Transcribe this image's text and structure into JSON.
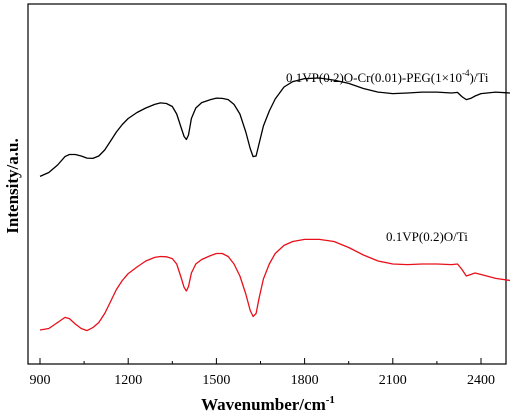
{
  "chart_data": {
    "type": "line",
    "xlabel": "Wavenumber/cm",
    "xlabel_superscript": "-1",
    "ylabel": "Intensity/a.u.",
    "xlim": [
      900,
      2500
    ],
    "x_ticks": [
      900,
      1200,
      1500,
      1800,
      2100,
      2400
    ],
    "x_tick_labels": [
      "900",
      "1200",
      "1500",
      "1800",
      "2100",
      "2400"
    ],
    "ylim": [
      0,
      10
    ],
    "y_ticks_labeled": false,
    "grid": false,
    "legend": "none",
    "series": [
      {
        "name": "0.1VP(0.2)O-Cr(0.01)-PEG(1×10",
        "name_superscript": "-4",
        "name_suffix": ")/Ti",
        "color": "#000000",
        "points": [
          [
            900,
            6.12
          ],
          [
            930,
            6.25
          ],
          [
            960,
            6.5
          ],
          [
            985,
            6.78
          ],
          [
            1000,
            6.85
          ],
          [
            1020,
            6.85
          ],
          [
            1040,
            6.8
          ],
          [
            1060,
            6.73
          ],
          [
            1080,
            6.72
          ],
          [
            1100,
            6.8
          ],
          [
            1120,
            7.0
          ],
          [
            1140,
            7.3
          ],
          [
            1160,
            7.6
          ],
          [
            1180,
            7.85
          ],
          [
            1200,
            8.05
          ],
          [
            1230,
            8.25
          ],
          [
            1260,
            8.4
          ],
          [
            1290,
            8.52
          ],
          [
            1310,
            8.57
          ],
          [
            1330,
            8.55
          ],
          [
            1350,
            8.45
          ],
          [
            1365,
            8.2
          ],
          [
            1380,
            7.75
          ],
          [
            1390,
            7.45
          ],
          [
            1398,
            7.35
          ],
          [
            1405,
            7.5
          ],
          [
            1415,
            8.05
          ],
          [
            1430,
            8.4
          ],
          [
            1450,
            8.58
          ],
          [
            1480,
            8.68
          ],
          [
            1500,
            8.73
          ],
          [
            1520,
            8.72
          ],
          [
            1540,
            8.68
          ],
          [
            1560,
            8.52
          ],
          [
            1580,
            8.2
          ],
          [
            1600,
            7.6
          ],
          [
            1615,
            7.05
          ],
          [
            1625,
            6.78
          ],
          [
            1635,
            6.8
          ],
          [
            1645,
            7.2
          ],
          [
            1660,
            7.8
          ],
          [
            1680,
            8.3
          ],
          [
            1700,
            8.7
          ],
          [
            1730,
            9.1
          ],
          [
            1760,
            9.28
          ],
          [
            1800,
            9.38
          ],
          [
            1850,
            9.4
          ],
          [
            1900,
            9.33
          ],
          [
            1950,
            9.22
          ],
          [
            2000,
            9.05
          ],
          [
            2050,
            8.93
          ],
          [
            2100,
            8.88
          ],
          [
            2150,
            8.9
          ],
          [
            2200,
            8.93
          ],
          [
            2250,
            8.93
          ],
          [
            2300,
            8.9
          ],
          [
            2320,
            8.92
          ],
          [
            2335,
            8.78
          ],
          [
            2350,
            8.68
          ],
          [
            2365,
            8.72
          ],
          [
            2380,
            8.8
          ],
          [
            2400,
            8.88
          ],
          [
            2450,
            8.93
          ],
          [
            2500,
            8.9
          ]
        ]
      },
      {
        "name": "0.1VP(0.2)O/Ti",
        "color": "#e8101a",
        "points": [
          [
            900,
            1.0
          ],
          [
            930,
            1.05
          ],
          [
            960,
            1.25
          ],
          [
            985,
            1.42
          ],
          [
            1000,
            1.38
          ],
          [
            1020,
            1.2
          ],
          [
            1040,
            1.05
          ],
          [
            1060,
            0.98
          ],
          [
            1080,
            1.08
          ],
          [
            1100,
            1.25
          ],
          [
            1120,
            1.55
          ],
          [
            1140,
            1.95
          ],
          [
            1160,
            2.35
          ],
          [
            1180,
            2.65
          ],
          [
            1200,
            2.88
          ],
          [
            1230,
            3.1
          ],
          [
            1260,
            3.3
          ],
          [
            1290,
            3.42
          ],
          [
            1310,
            3.45
          ],
          [
            1330,
            3.44
          ],
          [
            1350,
            3.38
          ],
          [
            1365,
            3.2
          ],
          [
            1380,
            2.75
          ],
          [
            1390,
            2.42
          ],
          [
            1398,
            2.3
          ],
          [
            1405,
            2.45
          ],
          [
            1415,
            2.9
          ],
          [
            1430,
            3.2
          ],
          [
            1450,
            3.35
          ],
          [
            1480,
            3.48
          ],
          [
            1500,
            3.55
          ],
          [
            1520,
            3.55
          ],
          [
            1540,
            3.45
          ],
          [
            1560,
            3.2
          ],
          [
            1580,
            2.8
          ],
          [
            1600,
            2.2
          ],
          [
            1615,
            1.65
          ],
          [
            1625,
            1.45
          ],
          [
            1635,
            1.55
          ],
          [
            1645,
            2.05
          ],
          [
            1660,
            2.7
          ],
          [
            1680,
            3.2
          ],
          [
            1700,
            3.55
          ],
          [
            1730,
            3.82
          ],
          [
            1760,
            3.95
          ],
          [
            1800,
            4.02
          ],
          [
            1850,
            4.02
          ],
          [
            1900,
            3.95
          ],
          [
            1950,
            3.75
          ],
          [
            2000,
            3.5
          ],
          [
            2050,
            3.3
          ],
          [
            2100,
            3.2
          ],
          [
            2150,
            3.18
          ],
          [
            2200,
            3.2
          ],
          [
            2250,
            3.2
          ],
          [
            2300,
            3.18
          ],
          [
            2320,
            3.2
          ],
          [
            2335,
            3.02
          ],
          [
            2350,
            2.8
          ],
          [
            2365,
            2.85
          ],
          [
            2380,
            2.9
          ],
          [
            2400,
            2.85
          ],
          [
            2450,
            2.72
          ],
          [
            2500,
            2.65
          ]
        ]
      }
    ]
  }
}
